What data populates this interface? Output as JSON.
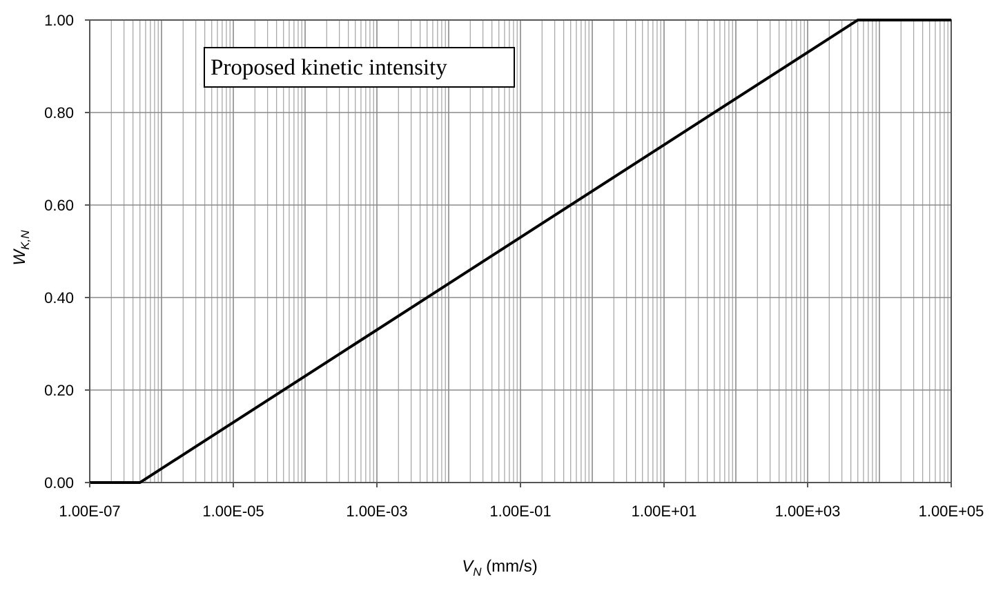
{
  "chart_data": {
    "type": "line",
    "x_scale": "log",
    "xlim": [
      "1.00E-07",
      "1.00E+05"
    ],
    "ylim": [
      0,
      1
    ],
    "grid": true,
    "x_ticks": [
      "1.00E-07",
      "1.00E-05",
      "1.00E-03",
      "1.00E-01",
      "1.00E+01",
      "1.00E+03",
      "1.00E+05"
    ],
    "y_ticks": [
      "0.00",
      "0.20",
      "0.40",
      "0.60",
      "0.80",
      "1.00"
    ],
    "xlabel": {
      "symbol": "V",
      "subscript": "N",
      "unit": " (mm/s)"
    },
    "ylabel": {
      "symbol": "W",
      "subscript": "K,N"
    },
    "annotation": "Proposed kinetic intensity",
    "series": [
      {
        "x": [
          "1.00E-07",
          "5.00E-07",
          "5.00E+03",
          "1.00E+05"
        ],
        "y": [
          0,
          0,
          1,
          1
        ],
        "color": "#000000"
      }
    ]
  }
}
